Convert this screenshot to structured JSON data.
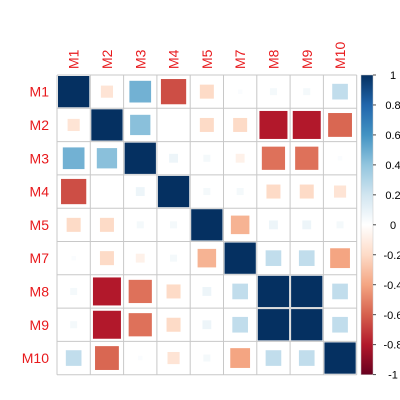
{
  "chart_data": {
    "type": "heatmap",
    "method": "square",
    "variables": [
      "M1",
      "M2",
      "M3",
      "M4",
      "M5",
      "M7",
      "M8",
      "M9",
      "M10"
    ],
    "matrix": [
      [
        1.0,
        -0.15,
        0.48,
        -0.65,
        -0.2,
        0.02,
        0.05,
        0.05,
        0.25
      ],
      [
        -0.15,
        1.0,
        0.42,
        0.0,
        -0.2,
        -0.2,
        -0.8,
        -0.8,
        -0.58
      ],
      [
        0.48,
        0.42,
        1.0,
        0.08,
        0.05,
        -0.08,
        -0.55,
        -0.55,
        0.02
      ],
      [
        -0.65,
        0.0,
        0.08,
        1.0,
        0.05,
        0.05,
        -0.2,
        -0.2,
        -0.15
      ],
      [
        -0.2,
        -0.2,
        0.05,
        0.05,
        1.0,
        -0.35,
        0.08,
        0.08,
        0.05
      ],
      [
        0.02,
        -0.2,
        -0.08,
        0.05,
        -0.35,
        1.0,
        0.25,
        0.25,
        -0.4
      ],
      [
        0.05,
        -0.8,
        -0.55,
        -0.2,
        0.08,
        0.25,
        1.0,
        1.0,
        0.25
      ],
      [
        0.05,
        -0.8,
        -0.55,
        -0.2,
        0.08,
        0.25,
        1.0,
        1.0,
        0.25
      ],
      [
        0.25,
        -0.58,
        0.02,
        -0.15,
        0.05,
        -0.4,
        0.25,
        0.25,
        1.0
      ]
    ],
    "colorbar": {
      "ticks": [
        "1",
        "0.8",
        "0.6",
        "0.4",
        "0.2",
        "0",
        "-0.2",
        "-0.4",
        "-0.6",
        "-0.8",
        "-1"
      ],
      "range": [
        -1,
        1
      ],
      "palette": [
        "#67001f",
        "#b2182b",
        "#d6604d",
        "#f4a582",
        "#fddbc7",
        "#ffffff",
        "#d1e5f0",
        "#92c5de",
        "#4393c3",
        "#2166ac",
        "#053061"
      ]
    },
    "label_color": "#e8191c",
    "grid": true
  }
}
